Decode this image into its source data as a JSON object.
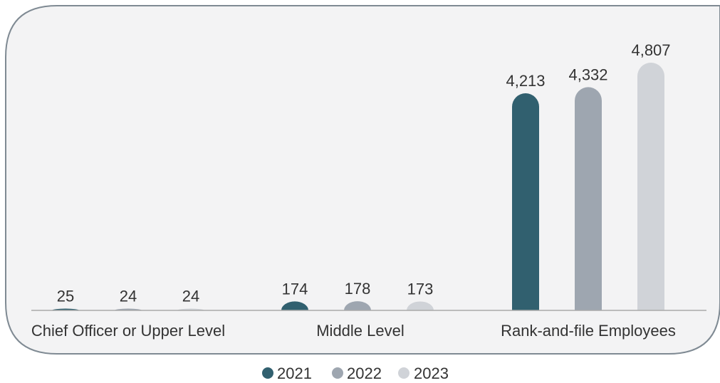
{
  "chart_data": {
    "type": "bar",
    "title": "",
    "xlabel": "",
    "ylabel": "",
    "categories": [
      "Chief Officer or Upper Level",
      "Middle Level",
      "Rank-and-file Employees"
    ],
    "series": [
      {
        "name": "2021",
        "values": [
          25,
          174,
          4213
        ],
        "labels": [
          "25",
          "174",
          "4,213"
        ],
        "color": "#31606f"
      },
      {
        "name": "2022",
        "values": [
          24,
          178,
          4332
        ],
        "labels": [
          "24",
          "178",
          "4,332"
        ],
        "color": "#9ea6b0"
      },
      {
        "name": "2023",
        "values": [
          24,
          173,
          4807
        ],
        "labels": [
          "24",
          "173",
          "4,807"
        ],
        "color": "#d0d3d8"
      }
    ],
    "ylim": [
      0,
      4807
    ],
    "grid": false,
    "legend_position": "bottom-center"
  },
  "colors": {
    "panel_background": "#f3f3f4",
    "panel_border": "#7f8a93",
    "baseline": "#a9a9a9"
  }
}
